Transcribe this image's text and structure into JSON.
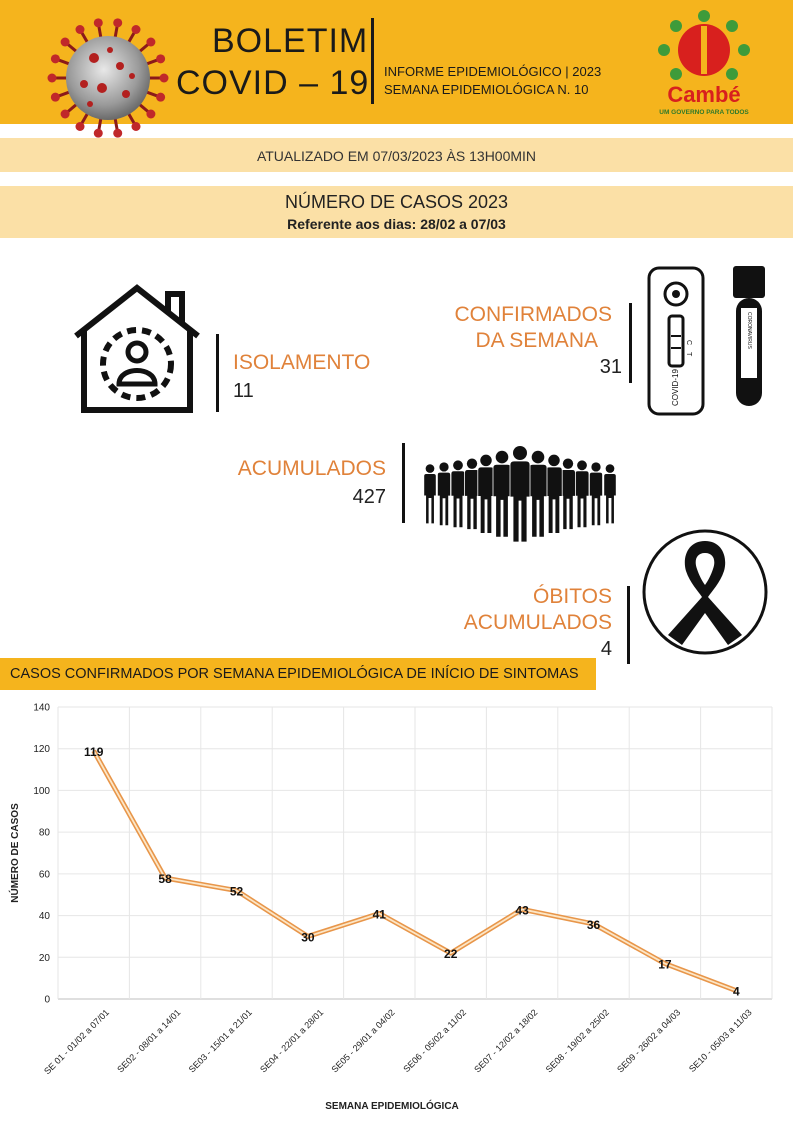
{
  "header": {
    "title_line1": "BOLETIM",
    "title_line2": "COVID – 19",
    "info_line1": "INFORME EPIDEMIOLÓGICO | 2023",
    "info_line2": "SEMANA EPIDEMIOLÓGICA  N. 10",
    "logo_name": "Cambé",
    "logo_tagline": "UM GOVERNO PARA TODOS",
    "colors": {
      "band": "#f5b41d",
      "light_band": "#fbe0a6",
      "accent": "#e0823a"
    }
  },
  "updated": "ATUALIZADO EM 07/03/2023 ÀS 13H00MIN",
  "cases": {
    "title": "NÚMERO DE CASOS 2023",
    "subtitle": "Referente aos dias: 28/02 a 07/03"
  },
  "stats": {
    "isolamento": {
      "label": "ISOLAMENTO",
      "value": "11",
      "icon": "house-isolation-icon"
    },
    "confirmados": {
      "label_line1": "CONFIRMADOS",
      "label_line2": "DA SEMANA",
      "value": "31",
      "icons": [
        "covid-test-icon",
        "blood-tube-icon"
      ]
    },
    "acumulados": {
      "label": "ACUMULADOS",
      "value": "427",
      "icon": "crowd-icon"
    },
    "obitos": {
      "label_line1": "ÓBITOS",
      "label_line2": "ACUMULADOS",
      "value": "4",
      "icon": "mourning-ribbon-icon"
    }
  },
  "test_kit_text": {
    "brand": "COVID-19",
    "c": "C",
    "t": "T"
  },
  "tube_text": "CORONAVIRUS",
  "chart_banner": "CASOS CONFIRMADOS POR SEMANA EPIDEMIOLÓGICA DE INÍCIO DE SINTOMAS",
  "chart_data": {
    "type": "line",
    "xlabel": "SEMANA EPIDEMIOLÓGICA",
    "ylabel": "NÚMERO DE CASOS",
    "ylim": [
      0,
      140
    ],
    "yticks": [
      0,
      20,
      40,
      60,
      80,
      100,
      120,
      140
    ],
    "grid": true,
    "categories": [
      "SE 01 - 01/02 a 07/01",
      "SE02 - 08/01 a 14/01",
      "SE03 - 15/01 a 21/01",
      "SE04 - 22/01 a 28/01",
      "SE05 - 29/01 a 04/02",
      "SE06 - 05/02 a 11/02",
      "SE07 - 12/02 a 18/02",
      "SE08 - 19/02 a 25/02",
      "SE09 - 26/02 a 04/03",
      "SE10 - 05/03 a 11/03"
    ],
    "values": [
      119,
      58,
      52,
      30,
      41,
      22,
      43,
      36,
      17,
      4
    ],
    "line_color": "#e8964a"
  }
}
